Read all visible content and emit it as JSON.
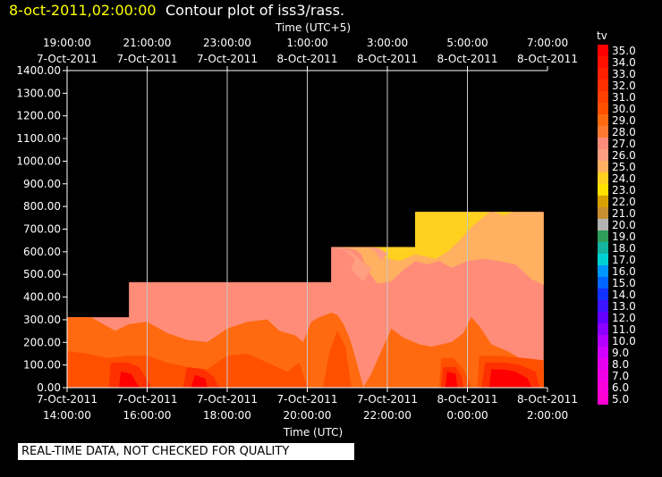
{
  "header": {
    "timestamp": "8-oct-2011,02:00:00",
    "title": "Contour plot of iss3/rass."
  },
  "notice": "REAL-TIME DATA, NOT CHECKED FOR QUALITY",
  "chart_data": {
    "type": "heatmap",
    "title": "Contour plot of iss3/rass.",
    "xlabel": "Time (UTC)",
    "x2label": "Time (UTC+5)",
    "ylabel": "",
    "xlim": [
      14,
      26
    ],
    "ylim": [
      0,
      1400
    ],
    "y_ticks": [
      "0.00",
      "100.00",
      "200.00",
      "300.00",
      "400.00",
      "500.00",
      "600.00",
      "700.00",
      "800.00",
      "900.00",
      "1000.00",
      "1100.00",
      "1200.00",
      "1300.00",
      "1400.00"
    ],
    "x_ticks": [
      {
        "x": 14,
        "date": "7-Oct-2011",
        "time": "14:00:00"
      },
      {
        "x": 16,
        "date": "7-Oct-2011",
        "time": "16:00:00"
      },
      {
        "x": 18,
        "date": "7-Oct-2011",
        "time": "18:00:00"
      },
      {
        "x": 20,
        "date": "7-Oct-2011",
        "time": "20:00:00"
      },
      {
        "x": 22,
        "date": "7-Oct-2011",
        "time": "22:00:00"
      },
      {
        "x": 24,
        "date": "8-Oct-2011",
        "time": "0:00:00"
      },
      {
        "x": 26,
        "date": "8-Oct-2011",
        "time": "2:00:00"
      }
    ],
    "x2_ticks": [
      {
        "x": 14,
        "time": "19:00:00",
        "date": "7-Oct-2011"
      },
      {
        "x": 16,
        "time": "21:00:00",
        "date": "7-Oct-2011"
      },
      {
        "x": 18,
        "time": "23:00:00",
        "date": "7-Oct-2011"
      },
      {
        "x": 20,
        "time": "1:00:00",
        "date": "8-Oct-2011"
      },
      {
        "x": 22,
        "time": "3:00:00",
        "date": "8-Oct-2011"
      },
      {
        "x": 24,
        "time": "5:00:00",
        "date": "8-Oct-2011"
      },
      {
        "x": 26,
        "time": "7:00:00",
        "date": "8-Oct-2011"
      }
    ],
    "gridlines": [
      16,
      18,
      20,
      22,
      24
    ],
    "legend": {
      "title": "tv",
      "placement": "right",
      "levels": [
        {
          "label": "35.0",
          "color": "#ff0000"
        },
        {
          "label": "34.0",
          "color": "#ff1000"
        },
        {
          "label": "33.0",
          "color": "#ff2000"
        },
        {
          "label": "32.0",
          "color": "#ff3000"
        },
        {
          "label": "31.0",
          "color": "#ff4000"
        },
        {
          "label": "30.0",
          "color": "#ff5000"
        },
        {
          "label": "29.0",
          "color": "#ff6a10"
        },
        {
          "label": "28.0",
          "color": "#ff7a30"
        },
        {
          "label": "27.0",
          "color": "#ff8c78"
        },
        {
          "label": "26.0",
          "color": "#ff9e80"
        },
        {
          "label": "25.0",
          "color": "#ffb060"
        },
        {
          "label": "24.0",
          "color": "#ffd020"
        },
        {
          "label": "23.0",
          "color": "#ffe000"
        },
        {
          "label": "22.0",
          "color": "#d8a000"
        },
        {
          "label": "21.0",
          "color": "#c89030"
        },
        {
          "label": "20.0",
          "color": "#b4b4b4"
        },
        {
          "label": "19.0",
          "color": "#2e9e5a"
        },
        {
          "label": "18.0",
          "color": "#14b4a0"
        },
        {
          "label": "17.0",
          "color": "#00d2d2"
        },
        {
          "label": "16.0",
          "color": "#0096ff"
        },
        {
          "label": "15.0",
          "color": "#0064ff"
        },
        {
          "label": "14.0",
          "color": "#1432ff"
        },
        {
          "label": "13.0",
          "color": "#3c14ff"
        },
        {
          "label": "12.0",
          "color": "#6400ff"
        },
        {
          "label": "11.0",
          "color": "#8c00ff"
        },
        {
          "label": "10.0",
          "color": "#b400ff"
        },
        {
          "label": "9.0",
          "color": "#d200ff"
        },
        {
          "label": "8.0",
          "color": "#e600f0"
        },
        {
          "label": "7.0",
          "color": "#f000e6"
        },
        {
          "label": "6.0",
          "color": "#fa00dc"
        },
        {
          "label": "5.0",
          "color": "#ff00d2"
        }
      ]
    },
    "regions": [
      {
        "value": 27.0,
        "color": "#ff8c78",
        "points": [
          [
            14,
            310
          ],
          [
            15.55,
            310
          ],
          [
            15.55,
            465
          ],
          [
            20.6,
            465
          ],
          [
            20.6,
            620
          ],
          [
            22.7,
            620
          ],
          [
            22.7,
            775
          ],
          [
            25.9,
            775
          ],
          [
            25.9,
            0
          ],
          [
            14,
            0
          ]
        ]
      },
      {
        "value": 25.0,
        "color": "#ffb060",
        "points": [
          [
            20.85,
            620
          ],
          [
            21.2,
            610
          ],
          [
            21.35,
            590
          ],
          [
            21.5,
            520
          ],
          [
            21.75,
            460
          ],
          [
            22.1,
            470
          ],
          [
            22.4,
            520
          ],
          [
            22.7,
            560
          ],
          [
            23.0,
            545
          ],
          [
            23.3,
            560
          ],
          [
            23.6,
            530
          ],
          [
            24.0,
            560
          ],
          [
            24.4,
            570
          ],
          [
            24.8,
            560
          ],
          [
            25.2,
            545
          ],
          [
            25.6,
            480
          ],
          [
            25.9,
            455
          ],
          [
            25.9,
            775
          ],
          [
            22.7,
            775
          ],
          [
            22.7,
            620
          ]
        ]
      },
      {
        "value": 23.5,
        "color": "#ffd020",
        "points": [
          [
            21.55,
            620
          ],
          [
            22.7,
            620
          ],
          [
            22.7,
            775
          ],
          [
            24.55,
            775
          ],
          [
            24.1,
            710
          ],
          [
            23.8,
            650
          ],
          [
            23.5,
            600
          ],
          [
            23.2,
            570
          ],
          [
            22.7,
            590
          ],
          [
            22.3,
            560
          ],
          [
            21.9,
            575
          ],
          [
            21.7,
            600
          ]
        ]
      },
      {
        "value": 23.5,
        "color": "#ffd020",
        "points": [
          [
            24.7,
            775
          ],
          [
            25.1,
            775
          ],
          [
            24.9,
            760
          ]
        ]
      },
      {
        "value": 26.0,
        "color": "#ff9e80",
        "points": [
          [
            20.6,
            620
          ],
          [
            20.85,
            620
          ],
          [
            21.2,
            570
          ],
          [
            21.1,
            520
          ],
          [
            21.4,
            470
          ],
          [
            21.6,
            525
          ],
          [
            21.35,
            560
          ],
          [
            21.1,
            600
          ],
          [
            20.9,
            610
          ]
        ]
      },
      {
        "value": 26.0,
        "color": "#ff9e80",
        "points": [
          [
            21.55,
            620
          ],
          [
            21.7,
            600
          ],
          [
            21.85,
            560
          ],
          [
            22.0,
            590
          ],
          [
            21.8,
            615
          ]
        ]
      },
      {
        "value": 29.0,
        "color": "#ff6a10",
        "points": [
          [
            14,
            0
          ],
          [
            14,
            310
          ],
          [
            14.6,
            310
          ],
          [
            14.9,
            280
          ],
          [
            15.2,
            250
          ],
          [
            15.55,
            280
          ],
          [
            16.0,
            290
          ],
          [
            16.5,
            240
          ],
          [
            17.0,
            210
          ],
          [
            17.5,
            200
          ],
          [
            18.0,
            260
          ],
          [
            18.5,
            290
          ],
          [
            19.0,
            300
          ],
          [
            19.3,
            250
          ],
          [
            19.7,
            230
          ],
          [
            19.9,
            200
          ],
          [
            20.1,
            290
          ],
          [
            20.3,
            310
          ],
          [
            20.6,
            330
          ],
          [
            20.75,
            320
          ],
          [
            20.9,
            280
          ],
          [
            21.05,
            220
          ],
          [
            21.2,
            130
          ],
          [
            21.4,
            0
          ]
        ]
      },
      {
        "value": 29.0,
        "color": "#ff6a10",
        "points": [
          [
            21.4,
            0
          ],
          [
            21.6,
            60
          ],
          [
            21.9,
            180
          ],
          [
            22.1,
            260
          ],
          [
            22.4,
            220
          ],
          [
            22.8,
            190
          ],
          [
            23.1,
            180
          ],
          [
            23.6,
            200
          ],
          [
            23.9,
            240
          ],
          [
            24.1,
            310
          ],
          [
            24.3,
            270
          ],
          [
            24.6,
            190
          ],
          [
            25.0,
            160
          ],
          [
            25.4,
            120
          ],
          [
            25.9,
            80
          ],
          [
            25.9,
            0
          ]
        ]
      },
      {
        "value": 30.0,
        "color": "#ff5000",
        "points": [
          [
            14,
            0
          ],
          [
            14,
            160
          ],
          [
            14.5,
            150
          ],
          [
            15.0,
            130
          ],
          [
            15.5,
            140
          ],
          [
            16.0,
            140
          ],
          [
            16.5,
            110
          ],
          [
            17.0,
            90
          ],
          [
            17.5,
            80
          ],
          [
            18.0,
            140
          ],
          [
            18.5,
            150
          ],
          [
            19.0,
            110
          ],
          [
            19.5,
            70
          ],
          [
            19.8,
            110
          ],
          [
            20.0,
            0
          ]
        ]
      },
      {
        "value": 30.0,
        "color": "#ff5000",
        "points": [
          [
            20.4,
            0
          ],
          [
            20.55,
            150
          ],
          [
            20.75,
            250
          ],
          [
            20.95,
            180
          ],
          [
            21.1,
            0
          ]
        ]
      },
      {
        "value": 30.0,
        "color": "#ff5000",
        "points": [
          [
            23.3,
            0
          ],
          [
            23.35,
            130
          ],
          [
            23.65,
            130
          ],
          [
            23.9,
            80
          ],
          [
            24.1,
            0
          ]
        ]
      },
      {
        "value": 30.0,
        "color": "#ff5000",
        "points": [
          [
            24.25,
            0
          ],
          [
            24.3,
            140
          ],
          [
            24.8,
            140
          ],
          [
            25.4,
            130
          ],
          [
            25.9,
            120
          ],
          [
            25.9,
            0
          ]
        ]
      },
      {
        "value": 31.5,
        "color": "#ff3000",
        "points": [
          [
            15.05,
            0
          ],
          [
            15.1,
            110
          ],
          [
            15.5,
            110
          ],
          [
            15.8,
            90
          ],
          [
            16.1,
            0
          ]
        ]
      },
      {
        "value": 31.5,
        "color": "#ff3000",
        "points": [
          [
            16.9,
            0
          ],
          [
            17.0,
            90
          ],
          [
            17.4,
            80
          ],
          [
            17.65,
            50
          ],
          [
            17.8,
            0
          ]
        ]
      },
      {
        "value": 31.5,
        "color": "#ff3000",
        "points": [
          [
            23.35,
            0
          ],
          [
            23.4,
            90
          ],
          [
            23.7,
            90
          ],
          [
            23.85,
            50
          ],
          [
            23.9,
            0
          ]
        ]
      },
      {
        "value": 31.5,
        "color": "#ff3000",
        "points": [
          [
            24.35,
            0
          ],
          [
            24.45,
            110
          ],
          [
            24.9,
            110
          ],
          [
            25.3,
            100
          ],
          [
            25.7,
            70
          ],
          [
            25.8,
            0
          ]
        ]
      },
      {
        "value": 34.0,
        "color": "#ff0000",
        "points": [
          [
            15.3,
            0
          ],
          [
            15.35,
            70
          ],
          [
            15.6,
            60
          ],
          [
            15.8,
            0
          ]
        ]
      },
      {
        "value": 34.0,
        "color": "#ff0000",
        "points": [
          [
            17.1,
            0
          ],
          [
            17.2,
            55
          ],
          [
            17.45,
            40
          ],
          [
            17.5,
            0
          ]
        ]
      },
      {
        "value": 34.0,
        "color": "#ff0000",
        "points": [
          [
            23.45,
            0
          ],
          [
            23.5,
            70
          ],
          [
            23.7,
            60
          ],
          [
            23.75,
            0
          ]
        ]
      },
      {
        "value": 34.0,
        "color": "#ff0000",
        "points": [
          [
            24.55,
            0
          ],
          [
            24.6,
            80
          ],
          [
            24.9,
            80
          ],
          [
            25.2,
            70
          ],
          [
            25.5,
            40
          ],
          [
            25.6,
            0
          ]
        ]
      }
    ]
  }
}
